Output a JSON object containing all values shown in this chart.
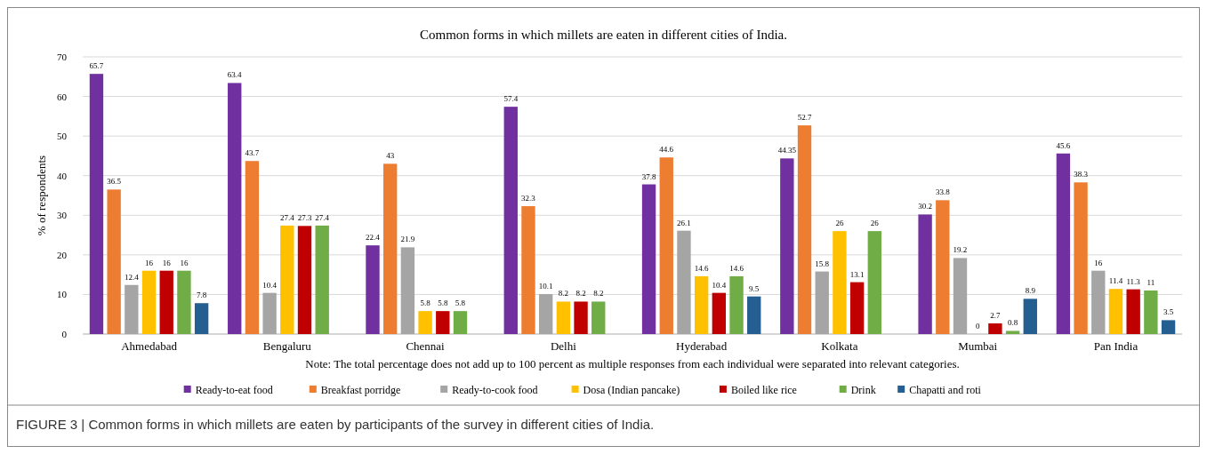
{
  "chart_data": {
    "type": "bar",
    "title": "Common forms in which millets are eaten in different cities of India.",
    "ylabel": "% of respondents",
    "categories": [
      "Ahmedabad",
      "Bengaluru",
      "Chennai",
      "Delhi",
      "Hyderabad",
      "Kolkata",
      "Mumbai",
      "Pan India"
    ],
    "series": [
      {
        "name": "Ready-to-eat food",
        "color": "#7030a0",
        "values": [
          65.7,
          63.4,
          22.4,
          57.4,
          37.8,
          44.35,
          30.2,
          45.6
        ]
      },
      {
        "name": "Breakfast porridge",
        "color": "#ed7d31",
        "values": [
          36.5,
          43.7,
          43,
          32.3,
          44.6,
          52.7,
          33.8,
          38.3
        ]
      },
      {
        "name": "Ready-to-cook food",
        "color": "#a5a5a5",
        "values": [
          12.4,
          10.4,
          21.9,
          10.1,
          26.1,
          15.8,
          19.2,
          16
        ]
      },
      {
        "name": "Dosa (Indian pancake)",
        "color": "#ffc000",
        "values": [
          16,
          27.4,
          5.8,
          8.2,
          14.6,
          26,
          0,
          11.4
        ]
      },
      {
        "name": "Boiled like rice",
        "color": "#c00000",
        "values": [
          16,
          27.3,
          5.8,
          8.2,
          10.4,
          13.1,
          2.7,
          11.3
        ]
      },
      {
        "name": "Drink",
        "color": "#70ad47",
        "values": [
          16,
          27.4,
          5.8,
          8.2,
          14.6,
          26,
          0.8,
          11
        ]
      },
      {
        "name": "Chapatti and roti",
        "color": "#255e91",
        "values": [
          7.8,
          null,
          null,
          null,
          9.5,
          null,
          8.9,
          3.5
        ]
      }
    ],
    "ylim": [
      0,
      70
    ],
    "yticks": [
      0,
      10,
      20,
      30,
      40,
      50,
      60,
      70
    ],
    "grid": "y",
    "legend": "bottom",
    "data_labels": true,
    "annotations": [
      "Note: The total percentage does not add up to 100 percent as multiple responses from each individual were separated into relevant categories.",
      "FIGURE 3 | Common forms in which millets are eaten by participants of the survey in different cities of India."
    ]
  }
}
